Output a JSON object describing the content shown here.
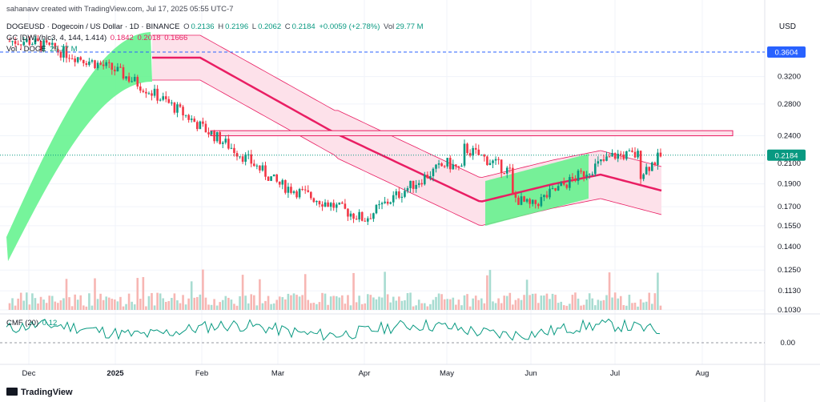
{
  "attribution": "sahanavv created with TradingView.com, Jul 17, 2025 05:55 UTC-7",
  "legend": {
    "symbol": "DOGEUSD · Dogecoin / US Dollar · 1D · BINANCE",
    "o_label": "O",
    "o": "0.2136",
    "h_label": "H",
    "h": "0.2196",
    "l_label": "L",
    "l": "0.2062",
    "c_label": "C",
    "c": "0.2184",
    "change": "+0.0059 (+2.78%)",
    "vol_label": "Vol",
    "vol": "29.77 M",
    "indicator": "GC [DW] (hlc3, 4, 144, 1.414)",
    "ind_v1": "0.1842",
    "ind_v2": "0.2018",
    "ind_v3": "0.1666",
    "vol_row_label": "Vol · DOGE",
    "vol_row_value": "29.77 M",
    "cmf_label": "CMF (20)",
    "cmf_value": "0.12"
  },
  "currency": "USD",
  "brand": "TradingView",
  "colors": {
    "up": "#26a69a",
    "down": "#ef5350",
    "upBody": "#089981",
    "downBody": "#f23645",
    "bandFill": "#fde1ea",
    "bandLine": "#e91e63",
    "greenBand": "#5ef28a",
    "resistanceFill": "#fde1ea",
    "dashed": "#2962ff",
    "priceTag": "#089981",
    "hlineTag": "#2962ff"
  },
  "chart_data": {
    "type": "candlestick",
    "title": "DOGEUSD · Dogecoin / US Dollar · 1D · BINANCE",
    "x_axis": [
      "Dec",
      "2025",
      "Feb",
      "Mar",
      "Apr",
      "May",
      "Jun",
      "Jul",
      "Aug"
    ],
    "y_axis_ticks": [
      0.103,
      0.113,
      0.125,
      0.14,
      0.155,
      0.17,
      0.19,
      0.21,
      0.24,
      0.28,
      0.32
    ],
    "y_scale": "log",
    "last_price": 0.2184,
    "horizontal_line": 0.3604,
    "resistance_zone": [
      0.24,
      0.246
    ],
    "cmf_ticks": [
      0.0
    ],
    "cmf_last": 0.12,
    "monthly_path": [
      {
        "month": "Dec",
        "close": 0.38
      },
      {
        "month": "2025",
        "close": 0.33
      },
      {
        "month": "Feb",
        "close": 0.25
      },
      {
        "month": "Mar",
        "close": 0.19
      },
      {
        "month": "Apr",
        "close": 0.16
      },
      {
        "month": "May",
        "close": 0.21
      },
      {
        "month": "Jun",
        "close": 0.17
      },
      {
        "month": "Jul",
        "close": 0.2184
      }
    ]
  }
}
